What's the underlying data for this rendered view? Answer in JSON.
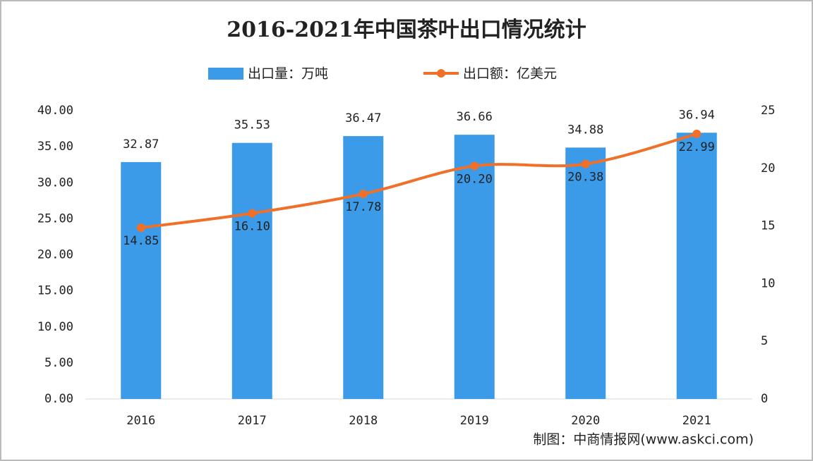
{
  "chart_data": {
    "type": "bar-line",
    "title": "2016-2021年中国茶叶出口情况统计",
    "source": "制图：中商情报网(www.askci.com)",
    "categories": [
      "2016",
      "2017",
      "2018",
      "2019",
      "2020",
      "2021"
    ],
    "series": [
      {
        "name": "出口量：万吨",
        "type": "bar",
        "color": "#3b9be8",
        "values": [
          32.87,
          35.53,
          36.47,
          36.66,
          34.88,
          36.94
        ]
      },
      {
        "name": "出口额：亿美元",
        "type": "line",
        "axis": "y2",
        "color": "#f0702a",
        "values": [
          14.85,
          16.1,
          17.78,
          20.2,
          20.38,
          22.99
        ],
        "value_labels": [
          "14.85",
          "16.10",
          "17.78",
          "20.20",
          "20.38",
          "22.99"
        ]
      }
    ],
    "ylim": [
      0,
      40
    ],
    "yticks": [
      {
        "value": 0,
        "label": "0.00"
      },
      {
        "value": 5,
        "label": "5.00"
      },
      {
        "value": 10,
        "label": "10.00"
      },
      {
        "value": 15,
        "label": "15.00"
      },
      {
        "value": 20,
        "label": "20.00"
      },
      {
        "value": 25,
        "label": "25.00"
      },
      {
        "value": 30,
        "label": "30.00"
      },
      {
        "value": 35,
        "label": "35.00"
      },
      {
        "value": 40,
        "label": "40.00"
      }
    ],
    "y2lim": [
      0,
      25
    ],
    "y2ticks": [
      0,
      5,
      10,
      15,
      20,
      25
    ],
    "legend": "top"
  }
}
